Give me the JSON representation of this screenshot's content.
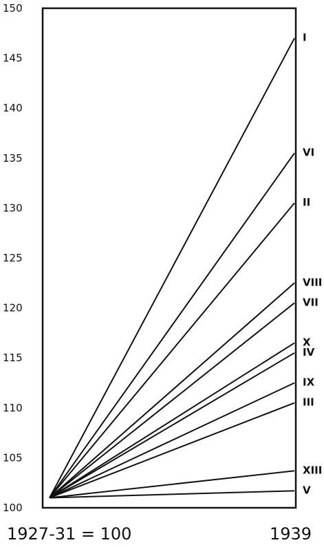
{
  "chart_data": {
    "type": "line",
    "x": [
      "1927-31 = 100",
      "1939"
    ],
    "y_ticks": [
      100,
      105,
      110,
      115,
      120,
      125,
      130,
      135,
      140,
      145,
      150
    ],
    "ylim": [
      100,
      150
    ],
    "grid": false,
    "series": [
      {
        "name": "I",
        "values": [
          100,
          147
        ]
      },
      {
        "name": "VI",
        "values": [
          100,
          135.5
        ]
      },
      {
        "name": "II",
        "values": [
          100,
          130.5
        ]
      },
      {
        "name": "VIII",
        "values": [
          100,
          122.5
        ]
      },
      {
        "name": "VII",
        "values": [
          100,
          120.5
        ]
      },
      {
        "name": "X",
        "values": [
          100,
          116.5
        ]
      },
      {
        "name": "IV",
        "values": [
          100,
          115.5
        ]
      },
      {
        "name": "IX",
        "values": [
          100,
          112.5
        ]
      },
      {
        "name": "III",
        "values": [
          100,
          110.5
        ]
      },
      {
        "name": "XIII",
        "values": [
          100,
          103.7
        ]
      },
      {
        "name": "V",
        "values": [
          100,
          101.7
        ]
      }
    ]
  }
}
